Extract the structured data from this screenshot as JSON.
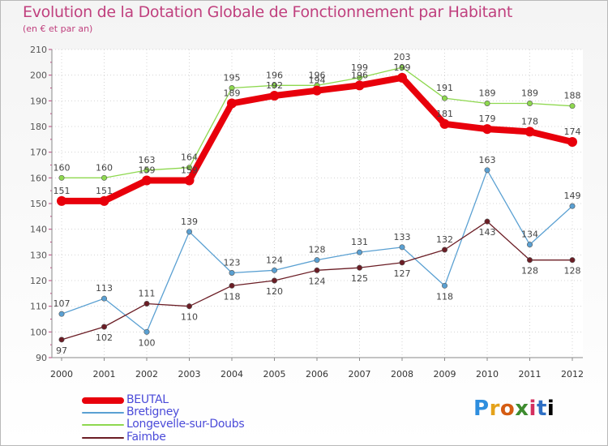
{
  "header": {
    "title": "Evolution de la Dotation Globale de Fonctionnement par Habitant",
    "subtitle": "(en € et par an)"
  },
  "logo": {
    "letters": [
      "P",
      "r",
      "o",
      "x",
      "i",
      "t",
      "i"
    ]
  },
  "chart_data": {
    "type": "line",
    "title": "Evolution de la Dotation Globale de Fonctionnement par Habitant",
    "subtitle": "(en € et par an)",
    "xlabel": "",
    "ylabel": "",
    "categories": [
      "2000",
      "2001",
      "2002",
      "2003",
      "2004",
      "2005",
      "2006",
      "2007",
      "2008",
      "2009",
      "2010",
      "2011",
      "2012"
    ],
    "ylim": [
      90,
      210
    ],
    "yticks": [
      90,
      100,
      110,
      120,
      130,
      140,
      150,
      160,
      170,
      180,
      190,
      200,
      210
    ],
    "grid": true,
    "legend_position": "bottom-left",
    "series": [
      {
        "name": "BEUTAL",
        "color": "#e8000b",
        "values": [
          151,
          151,
          159,
          159,
          189,
          192,
          194,
          196,
          199,
          181,
          179,
          178,
          174
        ]
      },
      {
        "name": "Bretigney",
        "color": "#5aa0d2",
        "values": [
          107,
          113,
          100,
          139,
          123,
          124,
          128,
          131,
          133,
          118,
          163,
          134,
          149
        ]
      },
      {
        "name": "Longevelle-sur-Doubs",
        "color": "#8ed84f",
        "values": [
          160,
          160,
          163,
          164,
          195,
          196,
          196,
          199,
          203,
          191,
          189,
          189,
          188
        ]
      },
      {
        "name": "Faimbe",
        "color": "#6b1d25",
        "values": [
          97,
          102,
          111,
          110,
          118,
          120,
          124,
          125,
          127,
          132,
          143,
          128,
          128
        ]
      }
    ]
  }
}
